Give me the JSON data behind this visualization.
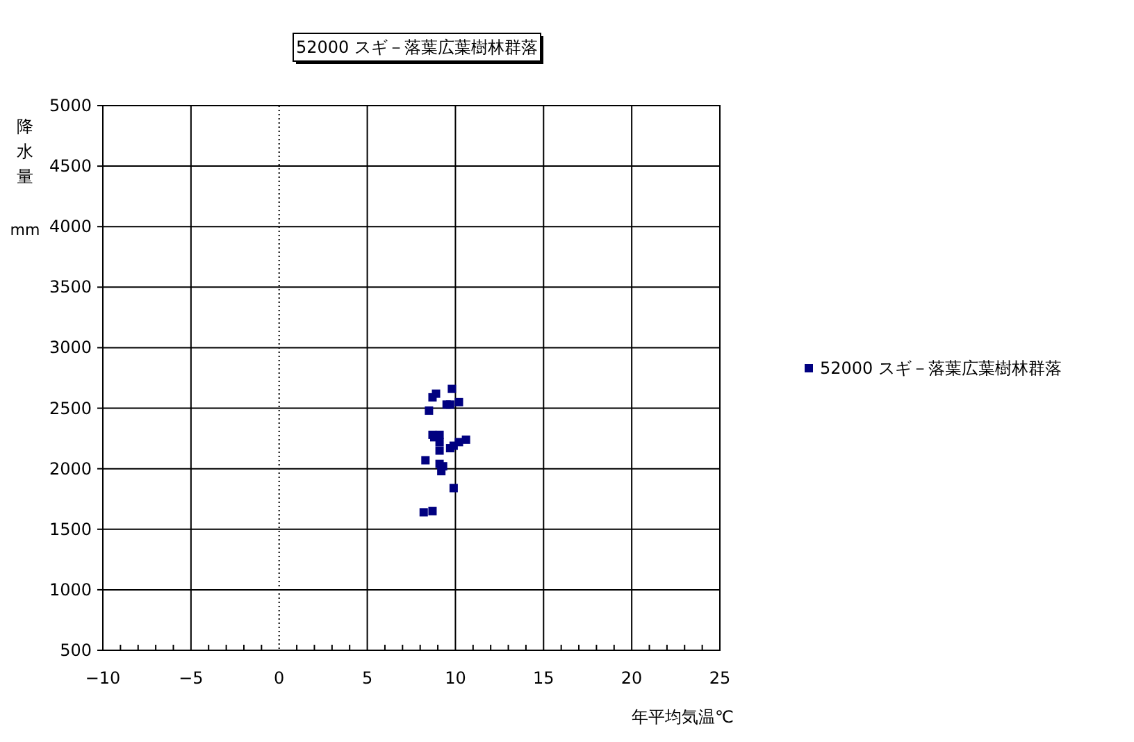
{
  "chart_data": {
    "type": "scatter",
    "title": "52000 スギ－落葉広葉樹林群落",
    "xlabel": "年平均気温℃",
    "ylabel": "降水量 mm",
    "series": [
      {
        "name": "52000 スギ－落葉広葉樹林群落",
        "color": "#000080",
        "x": [
          9.8,
          8.9,
          8.7,
          9.5,
          9.7,
          10.2,
          8.5,
          8.7,
          9.1,
          8.8,
          9.1,
          9.1,
          9.7,
          9.9,
          10.2,
          10.6,
          8.3,
          9.1,
          9.3,
          9.2,
          9.9,
          8.2,
          8.7
        ],
        "values": [
          2660,
          2620,
          2590,
          2530,
          2530,
          2550,
          2480,
          2280,
          2280,
          2260,
          2220,
          2150,
          2170,
          2190,
          2220,
          2240,
          2070,
          2040,
          2020,
          1980,
          1840,
          1640,
          1650
        ]
      }
    ],
    "xlim": [
      -10,
      25
    ],
    "ylim": [
      500,
      5000
    ],
    "xticks": [
      -10,
      -5,
      0,
      5,
      10,
      15,
      20,
      25
    ],
    "yticks": [
      500,
      1000,
      1500,
      2000,
      2500,
      3000,
      3500,
      4000,
      4500,
      5000
    ],
    "ref_lines": [
      {
        "axis": "x",
        "value": 0,
        "line_style": "dotted"
      }
    ],
    "grid": true,
    "legend": "right",
    "marker": "square"
  }
}
